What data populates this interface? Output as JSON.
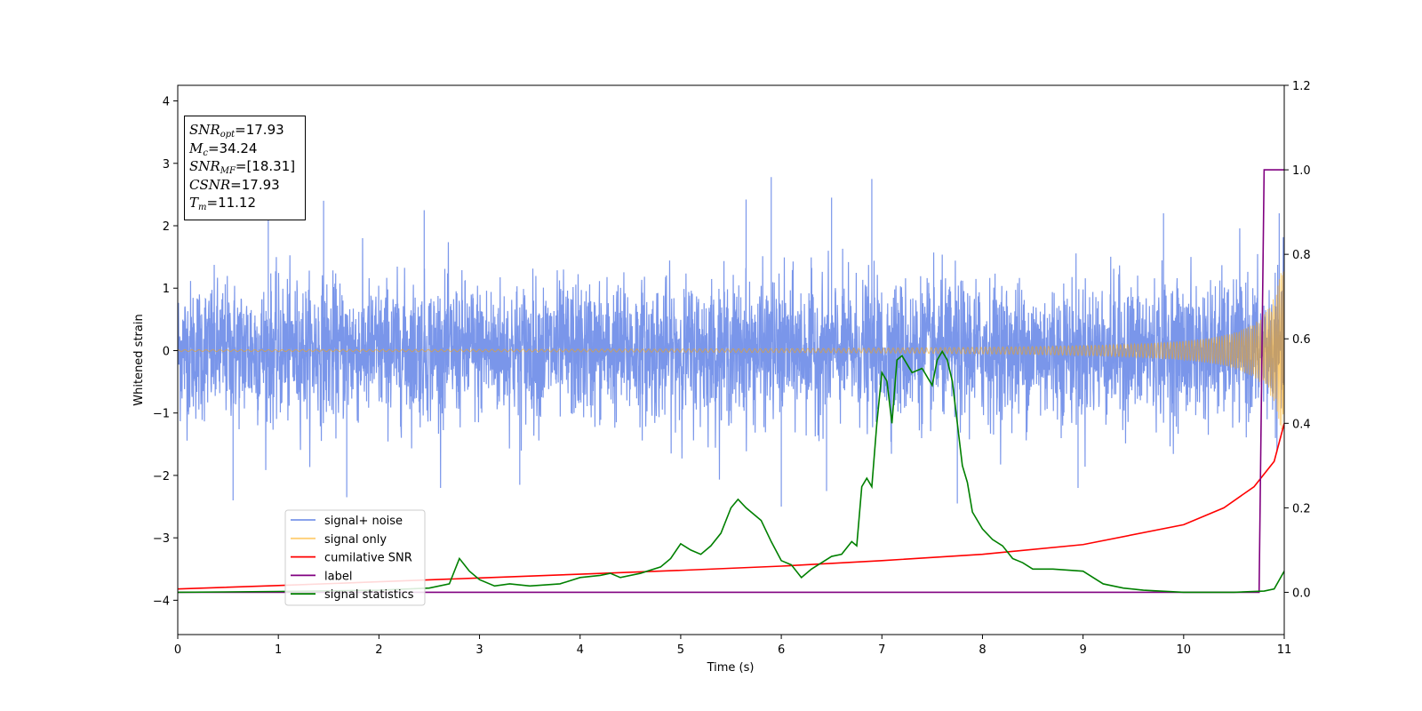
{
  "chart_data": {
    "type": "line",
    "xlabel": "Time (s)",
    "ylabel": "Whitened strain",
    "xlim": [
      0,
      11
    ],
    "ylim": [
      -4.55,
      4.25
    ],
    "y2lim": [
      -0.1,
      1.2
    ],
    "x_ticks": [
      "0",
      "1",
      "2",
      "3",
      "4",
      "5",
      "6",
      "7",
      "8",
      "9",
      "10",
      "11"
    ],
    "y_ticks": [
      "−4",
      "−3",
      "−2",
      "−1",
      "0",
      "1",
      "2",
      "3",
      "4"
    ],
    "y2_ticks": [
      "0.0",
      "0.2",
      "0.4",
      "0.6",
      "0.8",
      "1.0",
      "1.2"
    ],
    "grid": false,
    "legend_position": "lower-left",
    "annotations": [
      {
        "name": "SNR",
        "sub": "opt",
        "text": "=17.93"
      },
      {
        "name": "M",
        "sub": "c",
        "text": "=34.24"
      },
      {
        "name": "SNR",
        "sub": "MF",
        "text": "=[18.31]"
      },
      {
        "name": "CSNR",
        "sub": "",
        "text": "=17.93"
      },
      {
        "name": "T",
        "sub": "m",
        "text": "=11.12"
      }
    ],
    "series": [
      {
        "name": "signal+ noise",
        "color": "#4169e1",
        "axis": "left",
        "style": "noise",
        "std": 0.55,
        "peaks": [
          [
            0.55,
            -2.4
          ],
          [
            0.9,
            2.2
          ],
          [
            1.45,
            2.4
          ],
          [
            1.68,
            -2.35
          ],
          [
            2.45,
            2.25
          ],
          [
            3.4,
            -2.15
          ],
          [
            5.65,
            2.42
          ],
          [
            5.9,
            2.78
          ],
          [
            6.0,
            -2.5
          ],
          [
            6.45,
            -2.25
          ],
          [
            6.5,
            2.45
          ],
          [
            6.9,
            2.75
          ],
          [
            7.75,
            -2.45
          ],
          [
            8.95,
            -2.2
          ],
          [
            9.8,
            2.2
          ],
          [
            10.95,
            2.2
          ]
        ]
      },
      {
        "name": "signal only",
        "color": "#ffa500",
        "axis": "left",
        "style": "chirp"
      },
      {
        "name": "cumilative SNR",
        "color": "#ff0000",
        "axis": "right",
        "x": [
          0,
          1,
          2,
          3,
          4,
          5,
          6,
          7,
          8,
          9,
          10,
          10.4,
          10.7,
          10.9,
          11
        ],
        "values": [
          0.008,
          0.016,
          0.025,
          0.034,
          0.043,
          0.052,
          0.062,
          0.075,
          0.09,
          0.113,
          0.16,
          0.2,
          0.25,
          0.31,
          0.4
        ]
      },
      {
        "name": "label",
        "color": "#800080",
        "axis": "right",
        "x": [
          0,
          10.75,
          10.8,
          11
        ],
        "values": [
          0,
          0,
          1,
          1
        ]
      },
      {
        "name": "signal statistics",
        "color": "#008000",
        "axis": "right",
        "x": [
          0,
          1,
          2,
          2.5,
          2.7,
          2.8,
          2.9,
          3.0,
          3.15,
          3.3,
          3.5,
          3.8,
          4.0,
          4.2,
          4.3,
          4.4,
          4.6,
          4.8,
          4.9,
          5.0,
          5.1,
          5.2,
          5.3,
          5.4,
          5.5,
          5.57,
          5.65,
          5.75,
          5.8,
          5.9,
          6.0,
          6.1,
          6.2,
          6.3,
          6.4,
          6.5,
          6.6,
          6.7,
          6.75,
          6.8,
          6.85,
          6.9,
          6.95,
          7.0,
          7.05,
          7.1,
          7.15,
          7.2,
          7.3,
          7.4,
          7.5,
          7.55,
          7.6,
          7.65,
          7.7,
          7.8,
          7.85,
          7.9,
          8.0,
          8.1,
          8.2,
          8.3,
          8.4,
          8.5,
          8.7,
          9.0,
          9.2,
          9.4,
          9.6,
          10.0,
          10.5,
          10.8,
          10.9,
          11.0
        ],
        "values": [
          0.0,
          0.002,
          0.005,
          0.01,
          0.02,
          0.08,
          0.05,
          0.03,
          0.015,
          0.02,
          0.015,
          0.02,
          0.035,
          0.04,
          0.045,
          0.035,
          0.045,
          0.06,
          0.08,
          0.115,
          0.1,
          0.09,
          0.11,
          0.14,
          0.2,
          0.22,
          0.2,
          0.18,
          0.17,
          0.12,
          0.075,
          0.065,
          0.035,
          0.055,
          0.07,
          0.085,
          0.09,
          0.12,
          0.11,
          0.25,
          0.27,
          0.25,
          0.4,
          0.52,
          0.5,
          0.4,
          0.55,
          0.56,
          0.52,
          0.53,
          0.49,
          0.55,
          0.57,
          0.55,
          0.5,
          0.3,
          0.26,
          0.19,
          0.15,
          0.125,
          0.11,
          0.08,
          0.07,
          0.055,
          0.055,
          0.05,
          0.02,
          0.01,
          0.005,
          0.0,
          0.0,
          0.003,
          0.008,
          0.05
        ]
      }
    ]
  }
}
